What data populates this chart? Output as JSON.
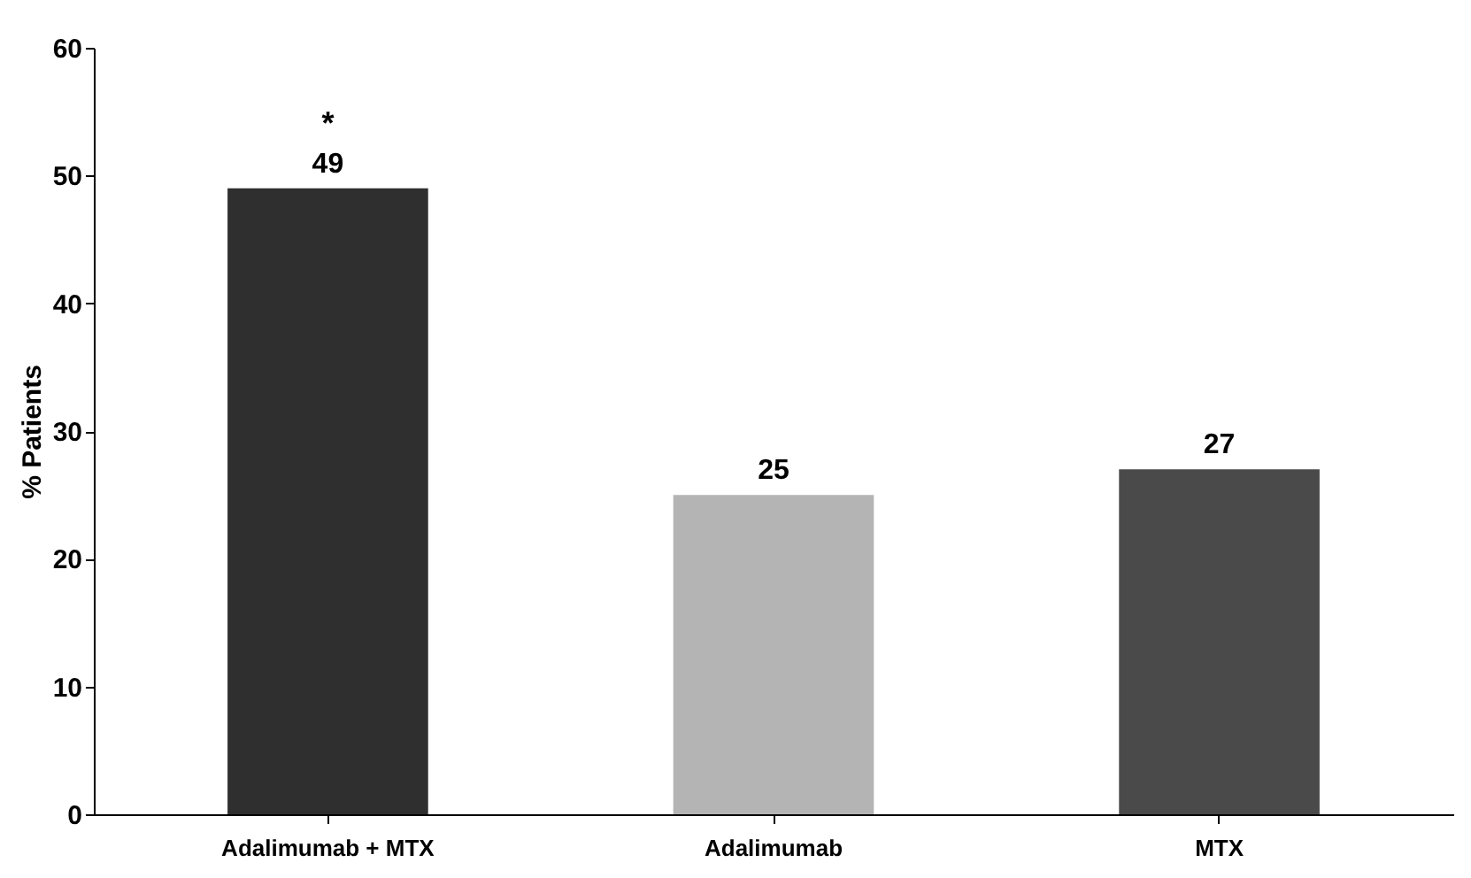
{
  "chart_data": {
    "type": "bar",
    "ylabel": "% Patients",
    "categories": [
      "Adalimumab + MTX",
      "Adalimumab",
      "MTX"
    ],
    "values": [
      49,
      25,
      27
    ],
    "colors": [
      "#2f2f2f",
      "#b4b4b4",
      "#4a4a4a"
    ],
    "ylim": [
      0,
      60
    ],
    "yticks": [
      0,
      10,
      20,
      30,
      40,
      50,
      60
    ],
    "data_labels": true,
    "grid": false,
    "annotations": [
      "*"
    ]
  }
}
